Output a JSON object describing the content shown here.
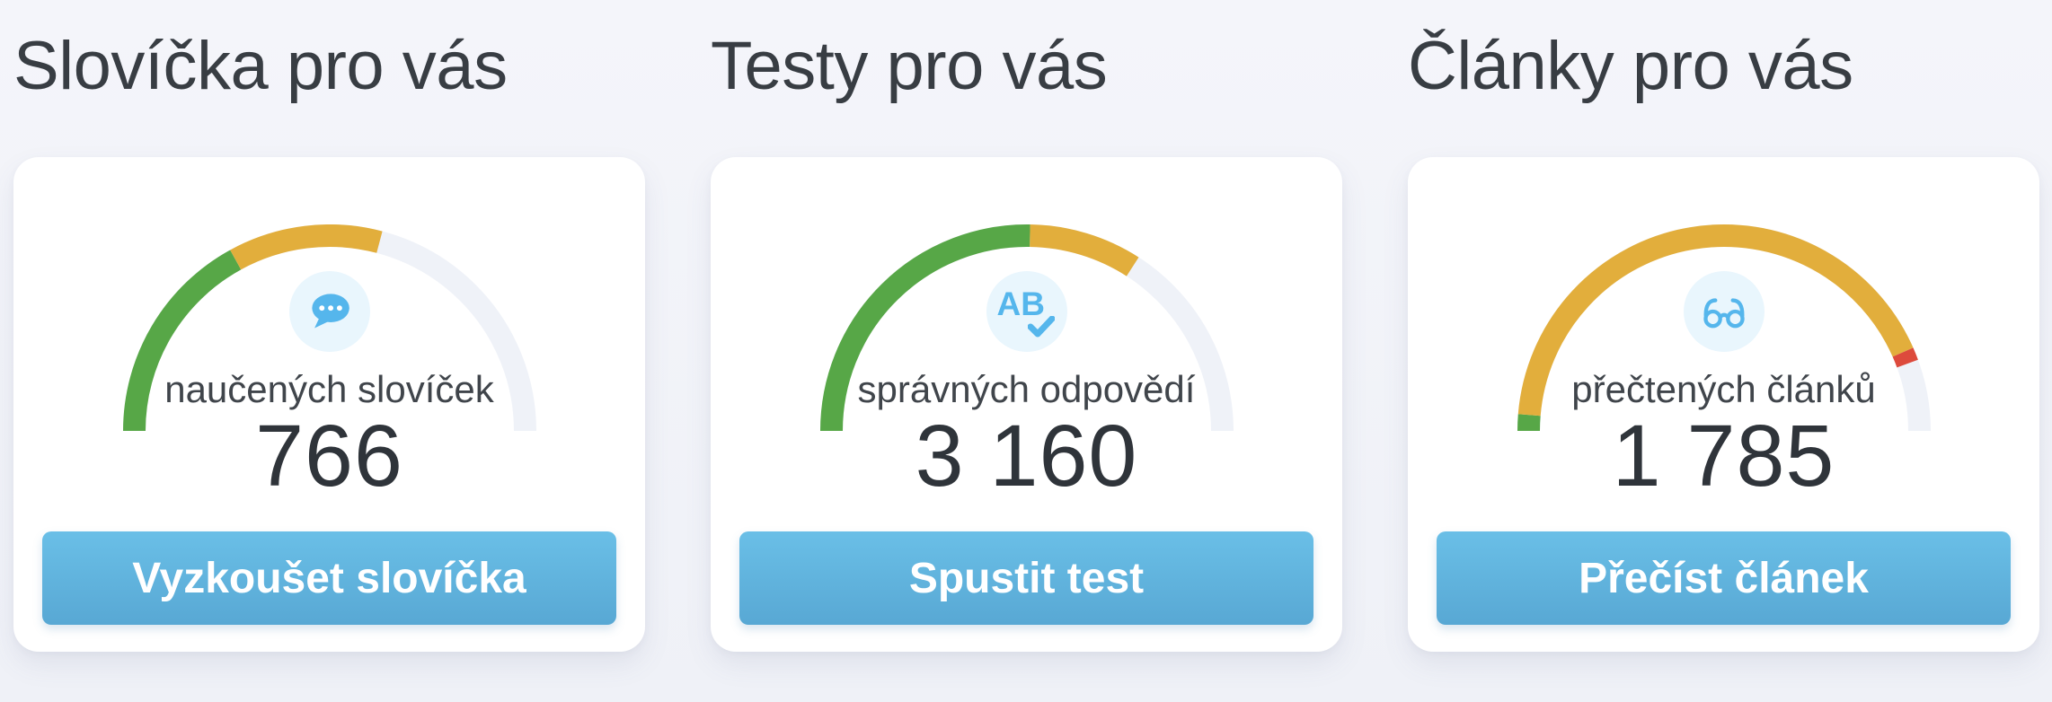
{
  "colors": {
    "page_background": "#f0f2f7",
    "card_background": "#ffffff",
    "green": "#57a747",
    "yellow": "#e2ae3c",
    "red": "#dd4a3c",
    "track": "#eff2f8",
    "icon_blue": "#55b6ec",
    "icon_circle_background": "#e9f6fd",
    "button_top": "#6abfe7",
    "button_bottom": "#58a8d4",
    "heading_text": "#383d43",
    "value_text": "#2f343a"
  },
  "icons": {
    "ab_text": "AB"
  },
  "cards": [
    {
      "title": "Slovíčka pro vás",
      "icon": "chat-bubble-icon",
      "metric_label": "naučených slovíček",
      "metric_value": "766",
      "button_label": "Vyzkoušet slovíčka",
      "gauge": {
        "type": "half-donut",
        "segments": [
          {
            "color": "green",
            "from": 0.0,
            "to": 0.34
          },
          {
            "color": "yellow",
            "from": 0.34,
            "to": 0.582
          }
        ]
      }
    },
    {
      "title": "Testy pro vás",
      "icon": "ab-test-icon",
      "metric_label": "správných odpovědí",
      "metric_value": "3 160",
      "button_label": "Spustit test",
      "gauge": {
        "type": "half-donut",
        "segments": [
          {
            "color": "green",
            "from": 0.0,
            "to": 0.505
          },
          {
            "color": "yellow",
            "from": 0.505,
            "to": 0.682
          }
        ]
      }
    },
    {
      "title": "Články pro vás",
      "icon": "glasses-icon",
      "metric_label": "přečtených článků",
      "metric_value": "1 785",
      "button_label": "Přečíst článek",
      "gauge": {
        "type": "half-donut",
        "segments": [
          {
            "color": "green",
            "from": 0.0,
            "to": 0.026
          },
          {
            "color": "yellow",
            "from": 0.026,
            "to": 0.868
          },
          {
            "color": "red",
            "from": 0.868,
            "to": 0.888
          }
        ]
      }
    }
  ]
}
